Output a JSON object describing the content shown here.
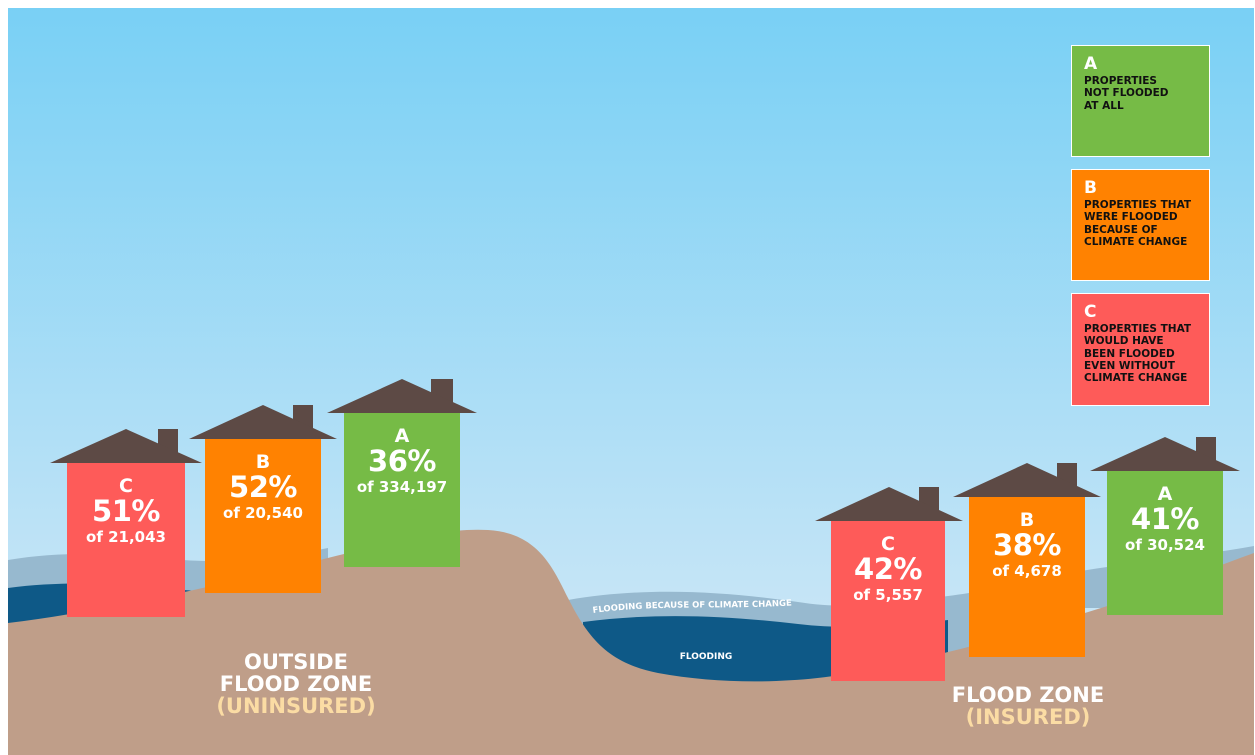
{
  "colors": {
    "sky_top": "#79d0f5",
    "sky_bottom": "#d9eaf6",
    "ground": "#bf9e89",
    "water_light": "#97b9cf",
    "water_dark": "#0e5987",
    "roof": "#5d4a45",
    "green": "#76bb46",
    "orange": "#ff8201",
    "red": "#fe5b59"
  },
  "legend": [
    {
      "key": "A",
      "text": "PROPERTIES\nNOT FLOODED\nAT ALL",
      "color": "green"
    },
    {
      "key": "B",
      "text": "PROPERTIES THAT\nWERE FLOODED\nBECAUSE OF\nCLIMATE CHANGE",
      "color": "orange"
    },
    {
      "key": "C",
      "text": "PROPERTIES THAT\nWOULD HAVE\nBEEN FLOODED\nEVEN WITHOUT\nCLIMATE CHANGE",
      "color": "red"
    }
  ],
  "houses_outside": [
    {
      "letter": "C",
      "percent": "51%",
      "of": "of 21,043",
      "color": "red"
    },
    {
      "letter": "B",
      "percent": "52%",
      "of": "of 20,540",
      "color": "orange"
    },
    {
      "letter": "A",
      "percent": "36%",
      "of": "of 334,197",
      "color": "green"
    }
  ],
  "houses_inside": [
    {
      "letter": "C",
      "percent": "42%",
      "of": "of 5,557",
      "color": "red"
    },
    {
      "letter": "B",
      "percent": "38%",
      "of": "of 4,678",
      "color": "orange"
    },
    {
      "letter": "A",
      "percent": "41%",
      "of": "of 30,524",
      "color": "green"
    }
  ],
  "zones": {
    "outside_title": "OUTSIDE\nFLOOD ZONE",
    "outside_sub": "(UNINSURED)",
    "inside_title": "FLOOD ZONE",
    "inside_sub": "(INSURED)"
  },
  "water_labels": {
    "climate": "FLOODING BECAUSE OF CLIMATE CHANGE",
    "flooding": "FLOODING"
  }
}
